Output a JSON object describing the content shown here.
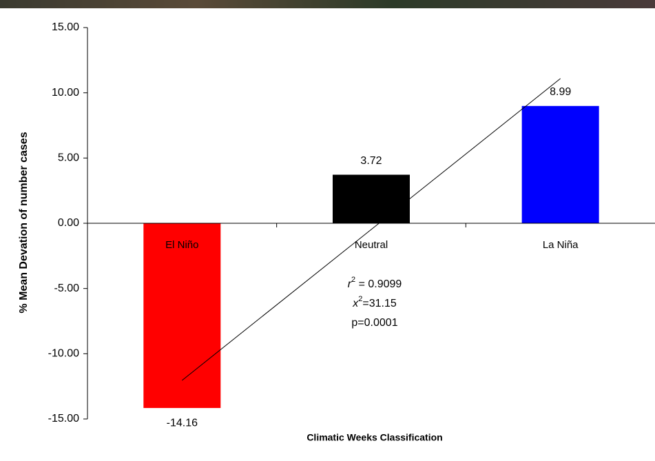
{
  "chart_data": {
    "type": "bar",
    "x_label": "Climatic Weeks Classification",
    "y_label": "% Mean Devation of number cases",
    "categories": [
      "El Niño",
      "Neutral",
      "La Niña"
    ],
    "values": [
      -14.16,
      3.72,
      8.99
    ],
    "colors": [
      "#ff0000",
      "#000000",
      "#0000ff"
    ],
    "ylim": [
      -15,
      15
    ],
    "yticks": [
      {
        "value": 15,
        "label": "15.00"
      },
      {
        "value": 10,
        "label": "10.00"
      },
      {
        "value": 5,
        "label": "5.00"
      },
      {
        "value": 0,
        "label": "0.00"
      },
      {
        "value": -5,
        "label": "-5.00"
      },
      {
        "value": -10,
        "label": "-10.00"
      },
      {
        "value": -15,
        "label": "-15.00"
      }
    ],
    "grid": false,
    "trendline": {
      "values": [
        -12.04,
        11.09
      ]
    },
    "annotations": [
      {
        "base": "r",
        "sup": "2",
        "text": " = 0.9099"
      },
      {
        "base": "x",
        "sup": "2",
        "text": "=31.15"
      },
      {
        "text": "p=0.0001"
      }
    ]
  }
}
